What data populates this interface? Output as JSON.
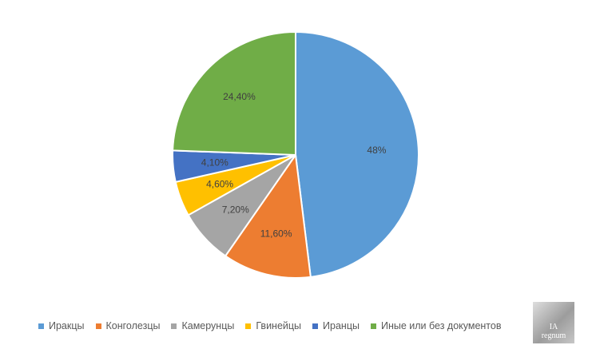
{
  "chart_data": {
    "type": "pie",
    "title": "",
    "categories": [
      "Иракцы",
      "Конголезцы",
      "Камерунцы",
      "Гвинейцы",
      "Иранцы",
      "Иные или без документов"
    ],
    "values": [
      48,
      11.6,
      7.2,
      4.6,
      4.1,
      24.4
    ],
    "data_labels": [
      "48%",
      "11,60%",
      "7,20%",
      "4,60%",
      "4,10%",
      "24,40%"
    ],
    "colors": [
      "#5B9BD5",
      "#ED7D31",
      "#A5A5A5",
      "#FFC000",
      "#4472C4",
      "#70AD47"
    ],
    "legend_placement": "bottom",
    "start_angle_deg": 0,
    "direction": "clockwise"
  },
  "watermark": {
    "logo_text": "IA",
    "text": "regnum"
  }
}
